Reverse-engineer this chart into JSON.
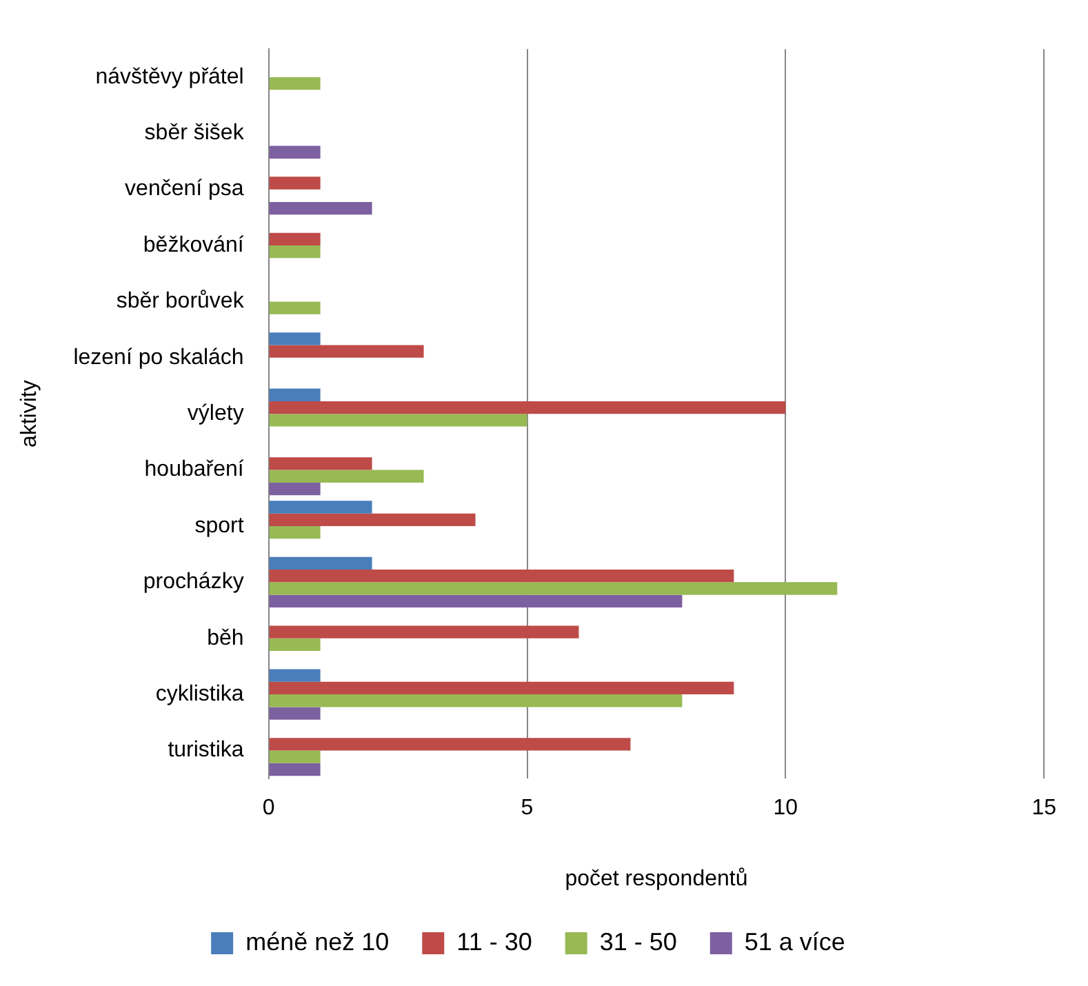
{
  "chart_data": {
    "type": "bar",
    "orientation": "horizontal",
    "xlabel": "počet respondentů",
    "ylabel": "aktivity",
    "categories": [
      "návštěvy přátel",
      "sběr šišek",
      "venčení psa",
      "běžkování",
      "sběr borůvek",
      "lezení po skalách",
      "výlety",
      "houbaření",
      "sport",
      "procházky",
      "běh",
      "cyklistika",
      "turistika"
    ],
    "series": [
      {
        "name": "méně než 10",
        "color": "#4a7ebb",
        "values": [
          null,
          null,
          null,
          null,
          null,
          1,
          1,
          null,
          2,
          2,
          null,
          1,
          null
        ]
      },
      {
        "name": "11 - 30",
        "color": "#be4b48",
        "values": [
          null,
          null,
          1,
          1,
          null,
          3,
          10,
          2,
          4,
          9,
          6,
          9,
          7
        ]
      },
      {
        "name": "31 - 50",
        "color": "#98b954",
        "values": [
          1,
          null,
          null,
          1,
          1,
          null,
          5,
          3,
          1,
          11,
          1,
          8,
          1
        ]
      },
      {
        "name": "51 a více",
        "color": "#7d60a0",
        "values": [
          null,
          1,
          2,
          null,
          null,
          null,
          null,
          1,
          null,
          8,
          null,
          1,
          1
        ]
      }
    ],
    "xlim": [
      0,
      15
    ],
    "xticks": [
      0,
      5,
      10,
      15
    ],
    "grid": "x",
    "legend": "bottom"
  }
}
